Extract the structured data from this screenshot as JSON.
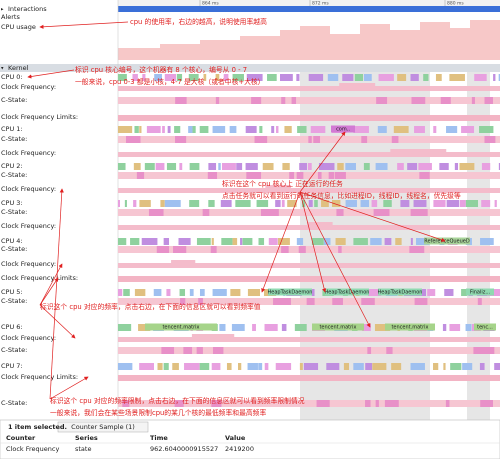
{
  "sidebar": {
    "tracks": [
      "Interactions",
      "Alerts",
      "CPU usage",
      "Kernel",
      "CPU 0:",
      "Clock Frequency:",
      "C-State:",
      "Clock Frequency Limits:",
      "CPU 1:",
      "C-State:",
      "Clock Frequency:",
      "CPU 2:",
      "C-State:",
      "Clock Frequency:",
      "CPU 3:",
      "C-State:",
      "Clock Frequency:",
      "CPU 4:",
      "C-State:",
      "Clock Frequency:",
      "Clock Frequency Limits:",
      "CPU 5:",
      "C-State:",
      "CPU 6:",
      "Clock Frequency:",
      "C-State:",
      "CPU 7:",
      "Clock Frequency Limits:",
      "C-State:"
    ]
  },
  "ruler": [
    "864 ms",
    "872 ms",
    "880 ms"
  ],
  "slices": [
    "com..",
    "ReferenceQueueD",
    "HeapTaskDaemon",
    "HeapTaskDaemon",
    "HeapTaskDaemon",
    "Finaliz...",
    "tencent.matrix",
    "tencent.matrix",
    "tencent.matrix",
    "tenc..."
  ],
  "annotations": [
    {
      "lines": [
        "cpu 的使用率，右边的越高，说明使用率越高"
      ]
    },
    {
      "lines": [
        "标识 cpu 核心编号，这个机器有 8 个核心，编号从 0 - 7",
        "一般来说，cpu 0-3 都是小核，4-7 是大核（或者中核+大核）"
      ]
    },
    {
      "lines": [
        "标识在这个 cpu 核心上 正在运行的任务",
        "点击任务就可以看到运行的任务信息，比如进程ID，线程ID，线程名，优先级等"
      ]
    },
    {
      "lines": [
        "标识这个 cpu 对应的频率，点击右边，在下面的信息区就可以看到频率值"
      ]
    },
    {
      "lines": [
        "标识这个 cpu 对应的频率限制，点击右边，在下面的信息区就可以看到频率限制情况",
        "一般来说，我们会在某些场景限制cpu的某几个核的最低频率和最高频率"
      ]
    }
  ],
  "details": {
    "status": "1 item selected.",
    "tab": "Counter Sample (1)",
    "columns": [
      "Counter",
      "Series",
      "Time",
      "Value"
    ],
    "rows": [
      [
        "Clock Frequency",
        "state",
        "962.6040000915527",
        "2419200"
      ]
    ]
  }
}
